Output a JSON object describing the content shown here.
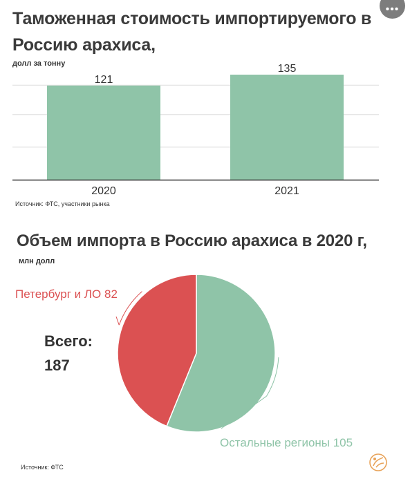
{
  "menu": {
    "icon": "more-horizontal-icon",
    "glyph": "•••"
  },
  "colors": {
    "green": "#8fc4a8",
    "red": "#db5152",
    "grid": "#dddddd",
    "axis": "#333333",
    "text": "#333333",
    "logo": "#e8a35a"
  },
  "chart_data": [
    {
      "type": "bar",
      "title": "Таможенная стоимость импортируемого в Россию арахиса,",
      "unit": "долл за тонну",
      "categories": [
        "2020",
        "2021"
      ],
      "values": [
        121,
        135
      ],
      "ylim": [
        0,
        135
      ],
      "grid": true,
      "source": "Источник: ФТС, участники рынка"
    },
    {
      "type": "pie",
      "title": "Объем импорта в Россию арахиса в 2020 г,",
      "unit": "млн долл",
      "slices": [
        {
          "label": "Петербург и ЛО 82",
          "value": 82,
          "color": "#db5152"
        },
        {
          "label": "Остальные регионы 105",
          "value": 105,
          "color": "#8fc4a8"
        }
      ],
      "total_label": "Всего:",
      "total_value": "187",
      "source": "Источник: ФТС"
    }
  ],
  "logo": {
    "icon": "peanut-logo-icon"
  }
}
